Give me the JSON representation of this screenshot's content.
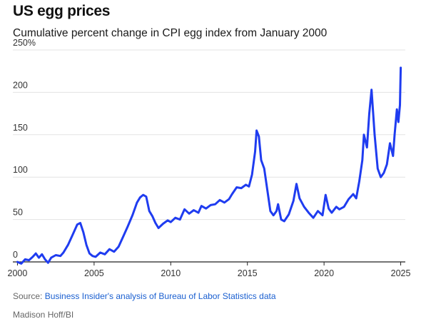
{
  "title": "US egg prices",
  "subtitle": "Cumulative percent change in CPI egg index from January 2000",
  "source": {
    "prefix": "Source: ",
    "link_text": "Business Insider's analysis of Bureau of Labor Statistics data"
  },
  "credit": "Madison Hoff/BI",
  "colors": {
    "line": "#1f3cf0",
    "grid": "#e3e3e3",
    "axis": "#222222",
    "link": "#1a5fd0"
  },
  "chart_data": {
    "type": "line",
    "title": "US egg prices",
    "subtitle": "Cumulative percent change in CPI egg index from January 2000",
    "xlabel": "",
    "ylabel": "",
    "xlim": [
      1999.7,
      2025.3
    ],
    "ylim": [
      0,
      250
    ],
    "x_ticks": [
      2000,
      2005,
      2010,
      2015,
      2020,
      2025
    ],
    "y_ticks": [
      0,
      50,
      100,
      150,
      200,
      250
    ],
    "y_tick_labels": [
      "0",
      "50",
      "100",
      "150",
      "200",
      "250%"
    ],
    "grid": "horizontal",
    "legend": "none",
    "series": [
      {
        "x": [
          2000.0,
          2000.25,
          2000.5,
          2000.75,
          2001.0,
          2001.2,
          2001.4,
          2001.6,
          2001.8,
          2002.0,
          2002.2,
          2002.5,
          2002.8,
          2003.0,
          2003.3,
          2003.6,
          2003.9,
          2004.1,
          2004.3,
          2004.5,
          2004.7,
          2004.9,
          2005.1,
          2005.4,
          2005.7,
          2006.0,
          2006.3,
          2006.6,
          2006.9,
          2007.2,
          2007.5,
          2007.8,
          2008.0,
          2008.2,
          2008.4,
          2008.6,
          2008.8,
          2009.0,
          2009.2,
          2009.5,
          2009.8,
          2010.0,
          2010.3,
          2010.6,
          2010.9,
          2011.2,
          2011.5,
          2011.8,
          2012.0,
          2012.3,
          2012.6,
          2012.9,
          2013.2,
          2013.5,
          2013.8,
          2014.0,
          2014.3,
          2014.6,
          2014.9,
          2015.1,
          2015.3,
          2015.5,
          2015.6,
          2015.75,
          2015.9,
          2016.1,
          2016.3,
          2016.5,
          2016.7,
          2016.9,
          2017.0,
          2017.2,
          2017.4,
          2017.7,
          2018.0,
          2018.2,
          2018.4,
          2018.7,
          2019.0,
          2019.3,
          2019.6,
          2019.9,
          2020.1,
          2020.3,
          2020.5,
          2020.8,
          2021.0,
          2021.3,
          2021.6,
          2021.9,
          2022.1,
          2022.3,
          2022.5,
          2022.6,
          2022.8,
          2022.95,
          2023.1,
          2023.3,
          2023.5,
          2023.7,
          2023.9,
          2024.1,
          2024.3,
          2024.5,
          2024.6,
          2024.75,
          2024.85,
          2024.95,
          2025.0
        ],
        "y": [
          0,
          -2,
          3,
          2,
          6,
          10,
          5,
          9,
          3,
          -1,
          5,
          8,
          7,
          11,
          20,
          32,
          44,
          46,
          35,
          20,
          10,
          7,
          6,
          11,
          9,
          15,
          12,
          18,
          30,
          42,
          55,
          70,
          76,
          79,
          77,
          60,
          54,
          46,
          40,
          45,
          49,
          47,
          52,
          50,
          62,
          57,
          61,
          58,
          66,
          63,
          67,
          68,
          73,
          70,
          74,
          80,
          88,
          87,
          91,
          89,
          103,
          130,
          155,
          148,
          120,
          110,
          85,
          60,
          55,
          60,
          68,
          50,
          48,
          56,
          72,
          92,
          75,
          65,
          58,
          52,
          60,
          55,
          79,
          63,
          58,
          65,
          62,
          65,
          74,
          80,
          75,
          95,
          120,
          150,
          135,
          175,
          203,
          150,
          110,
          100,
          105,
          115,
          140,
          125,
          150,
          180,
          165,
          185,
          229
        ]
      }
    ]
  }
}
